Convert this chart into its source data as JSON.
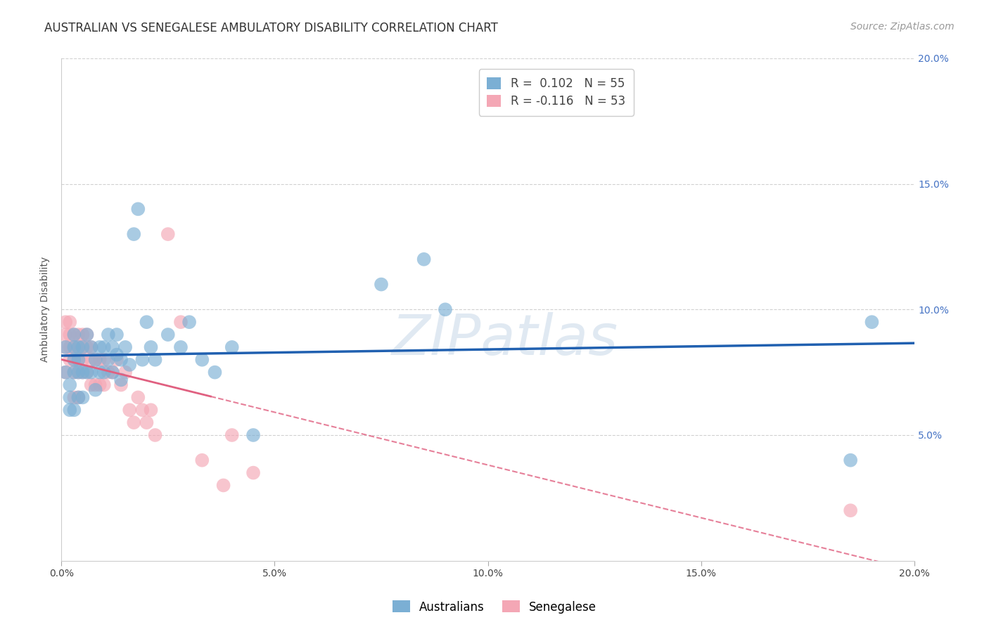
{
  "title": "AUSTRALIAN VS SENEGALESE AMBULATORY DISABILITY CORRELATION CHART",
  "source": "Source: ZipAtlas.com",
  "ylabel": "Ambulatory Disability",
  "watermark": "ZIPatlas",
  "legend_blue_r": "R =  0.102",
  "legend_blue_n": "N = 55",
  "legend_pink_r": "R = -0.116",
  "legend_pink_n": "N = 53",
  "xlim": [
    0.0,
    0.2
  ],
  "ylim": [
    0.0,
    0.2
  ],
  "xticks": [
    0.0,
    0.05,
    0.1,
    0.15,
    0.2
  ],
  "yticks": [
    0.05,
    0.1,
    0.15,
    0.2
  ],
  "blue_x": [
    0.001,
    0.001,
    0.002,
    0.002,
    0.002,
    0.003,
    0.003,
    0.003,
    0.003,
    0.003,
    0.004,
    0.004,
    0.004,
    0.004,
    0.005,
    0.005,
    0.005,
    0.006,
    0.006,
    0.007,
    0.007,
    0.008,
    0.008,
    0.009,
    0.009,
    0.01,
    0.01,
    0.011,
    0.011,
    0.012,
    0.012,
    0.013,
    0.013,
    0.014,
    0.014,
    0.015,
    0.016,
    0.017,
    0.018,
    0.019,
    0.02,
    0.021,
    0.022,
    0.025,
    0.028,
    0.03,
    0.033,
    0.036,
    0.04,
    0.045,
    0.075,
    0.085,
    0.09,
    0.185,
    0.19
  ],
  "blue_y": [
    0.085,
    0.075,
    0.07,
    0.065,
    0.06,
    0.09,
    0.085,
    0.08,
    0.075,
    0.06,
    0.085,
    0.08,
    0.075,
    0.065,
    0.085,
    0.075,
    0.065,
    0.09,
    0.075,
    0.085,
    0.075,
    0.08,
    0.068,
    0.085,
    0.075,
    0.085,
    0.075,
    0.09,
    0.08,
    0.085,
    0.075,
    0.09,
    0.082,
    0.08,
    0.072,
    0.085,
    0.078,
    0.13,
    0.14,
    0.08,
    0.095,
    0.085,
    0.08,
    0.09,
    0.085,
    0.095,
    0.08,
    0.075,
    0.085,
    0.05,
    0.11,
    0.12,
    0.1,
    0.04,
    0.095
  ],
  "pink_x": [
    0.001,
    0.001,
    0.001,
    0.001,
    0.002,
    0.002,
    0.002,
    0.002,
    0.003,
    0.003,
    0.003,
    0.003,
    0.003,
    0.004,
    0.004,
    0.004,
    0.004,
    0.004,
    0.005,
    0.005,
    0.005,
    0.005,
    0.006,
    0.006,
    0.006,
    0.007,
    0.007,
    0.007,
    0.008,
    0.008,
    0.009,
    0.009,
    0.01,
    0.01,
    0.011,
    0.012,
    0.013,
    0.014,
    0.015,
    0.016,
    0.017,
    0.018,
    0.019,
    0.02,
    0.021,
    0.022,
    0.025,
    0.028,
    0.033,
    0.038,
    0.04,
    0.045,
    0.185
  ],
  "pink_y": [
    0.095,
    0.09,
    0.085,
    0.075,
    0.095,
    0.09,
    0.085,
    0.08,
    0.09,
    0.085,
    0.08,
    0.075,
    0.065,
    0.09,
    0.085,
    0.08,
    0.075,
    0.065,
    0.09,
    0.085,
    0.08,
    0.075,
    0.09,
    0.085,
    0.075,
    0.085,
    0.08,
    0.07,
    0.08,
    0.07,
    0.08,
    0.07,
    0.08,
    0.07,
    0.075,
    0.075,
    0.08,
    0.07,
    0.075,
    0.06,
    0.055,
    0.065,
    0.06,
    0.055,
    0.06,
    0.05,
    0.13,
    0.095,
    0.04,
    0.03,
    0.05,
    0.035,
    0.02
  ],
  "blue_color": "#7bafd4",
  "pink_color": "#f4a7b5",
  "blue_line_color": "#2060b0",
  "pink_line_color": "#e06080",
  "background_color": "#ffffff",
  "grid_color": "#cccccc",
  "title_fontsize": 12,
  "axis_label_fontsize": 10,
  "tick_fontsize": 10,
  "legend_fontsize": 12,
  "source_fontsize": 10
}
